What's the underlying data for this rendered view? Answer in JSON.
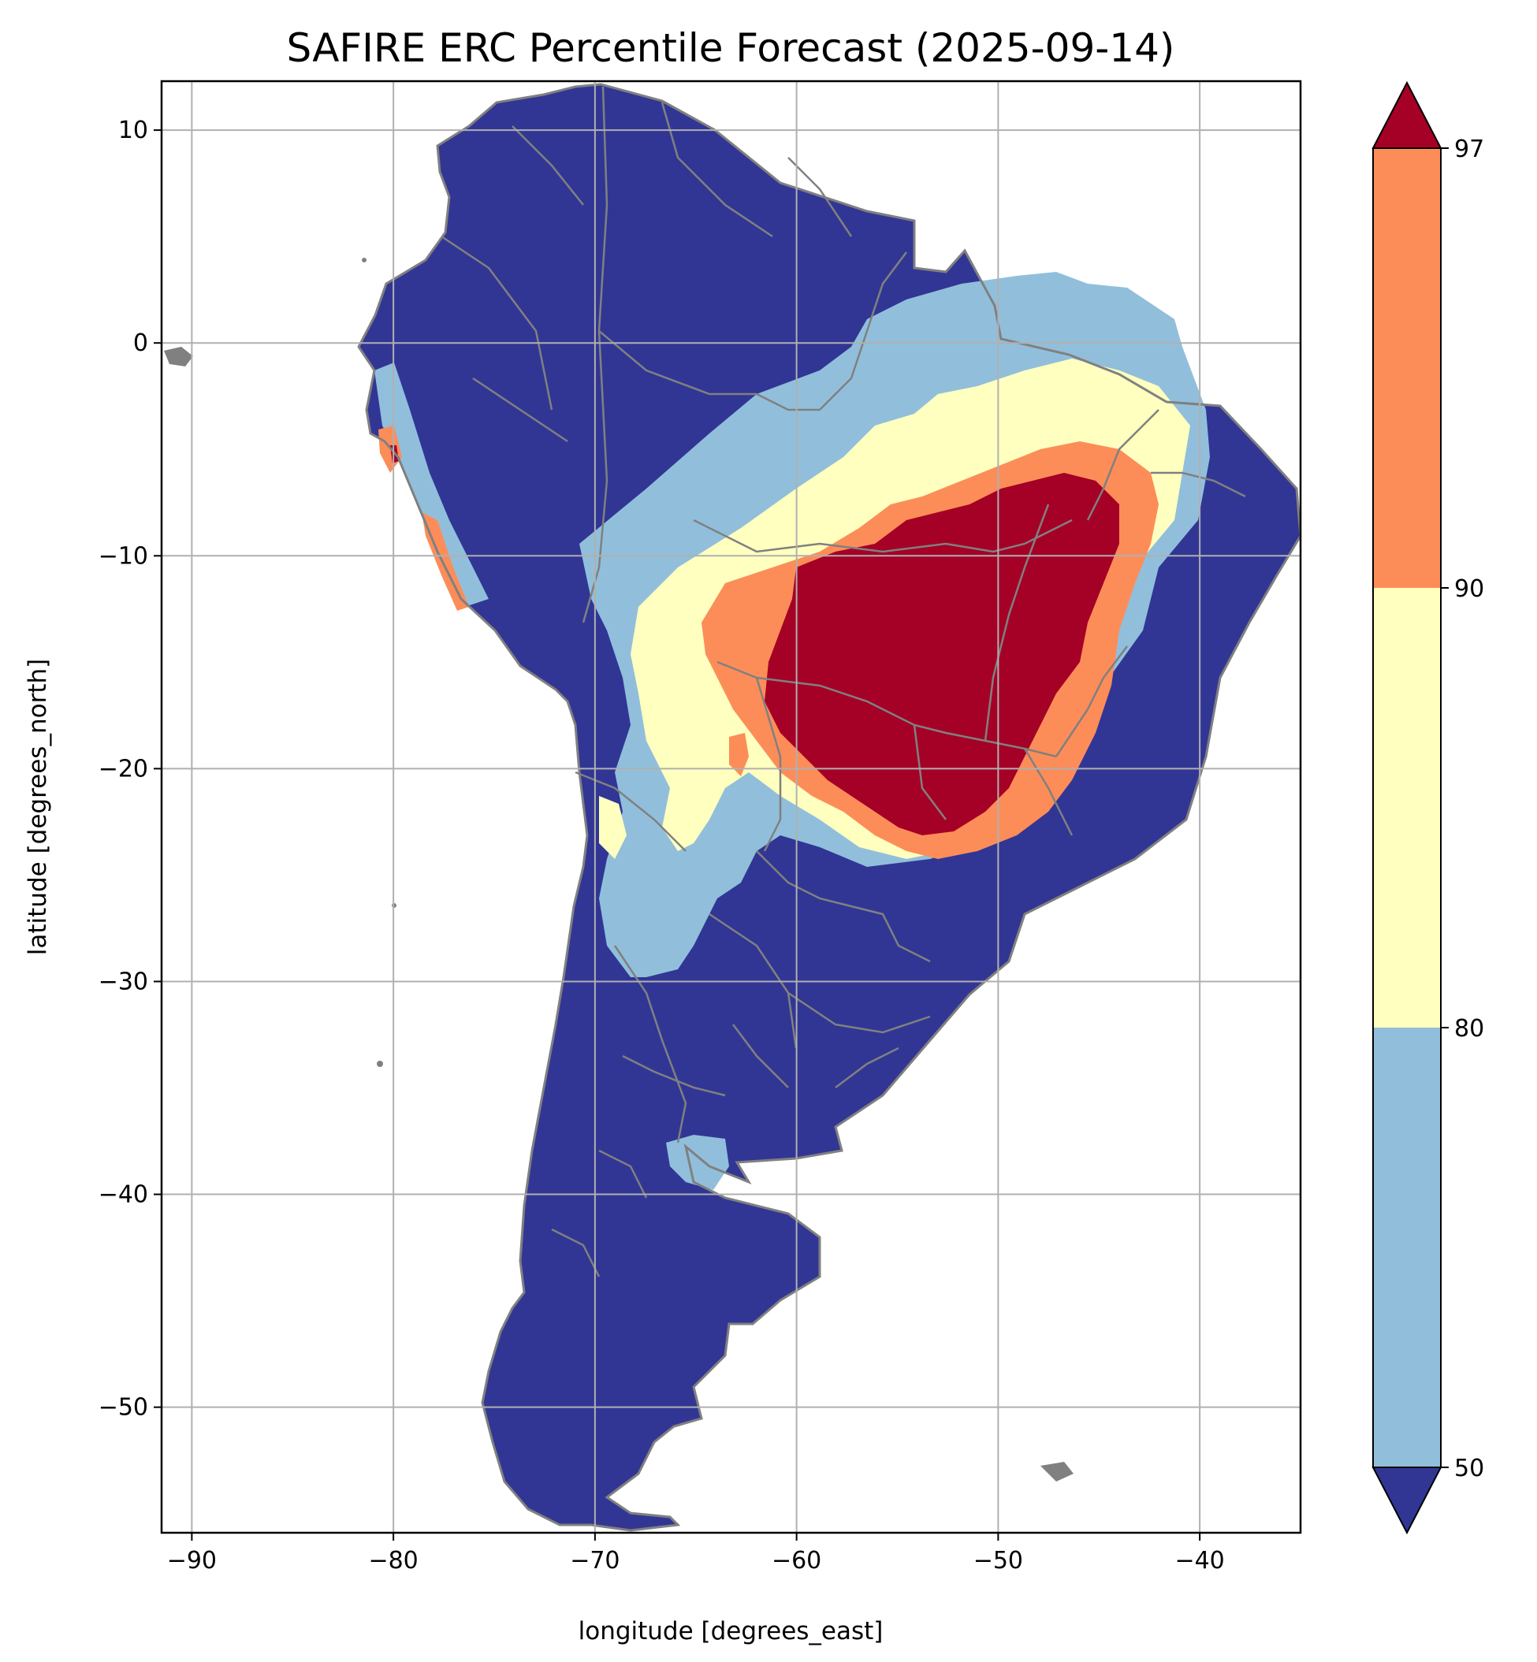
{
  "figure": {
    "title": "SAFIRE ERC Percentile Forecast (2025-09-14)",
    "xlabel": "longitude [degrees_east]",
    "ylabel": "latitude [degrees_north]"
  },
  "map": {
    "region": "South America",
    "projection": "PlateCarree",
    "lon_range": [
      -91.5,
      -35
    ],
    "lat_range": [
      -55.9,
      12.3
    ],
    "x_ticks": [
      -90,
      -80,
      -70,
      -60,
      -50,
      -40
    ],
    "y_ticks": [
      10,
      0,
      -10,
      -20,
      -30,
      -40,
      -50
    ],
    "x_tick_labels": [
      "−90",
      "−80",
      "−70",
      "−60",
      "−50",
      "−40"
    ],
    "y_tick_labels": [
      "10",
      "0",
      "−10",
      "−20",
      "−30",
      "−40",
      "−50"
    ],
    "grid": true,
    "borders_color": "#808080",
    "grid_color": "#b0b0b0"
  },
  "colorbar": {
    "ticks": [
      "97",
      "90",
      "80",
      "50"
    ],
    "extend": "both",
    "bins": [
      {
        "range": "< 50",
        "color": "#313695"
      },
      {
        "range": "50–80",
        "color": "#91bfdb"
      },
      {
        "range": "80–90",
        "color": "#ffffbf"
      },
      {
        "range": "90–97",
        "color": "#fc8d59"
      },
      {
        "range": "> 97",
        "color": "#a50026"
      }
    ]
  }
}
